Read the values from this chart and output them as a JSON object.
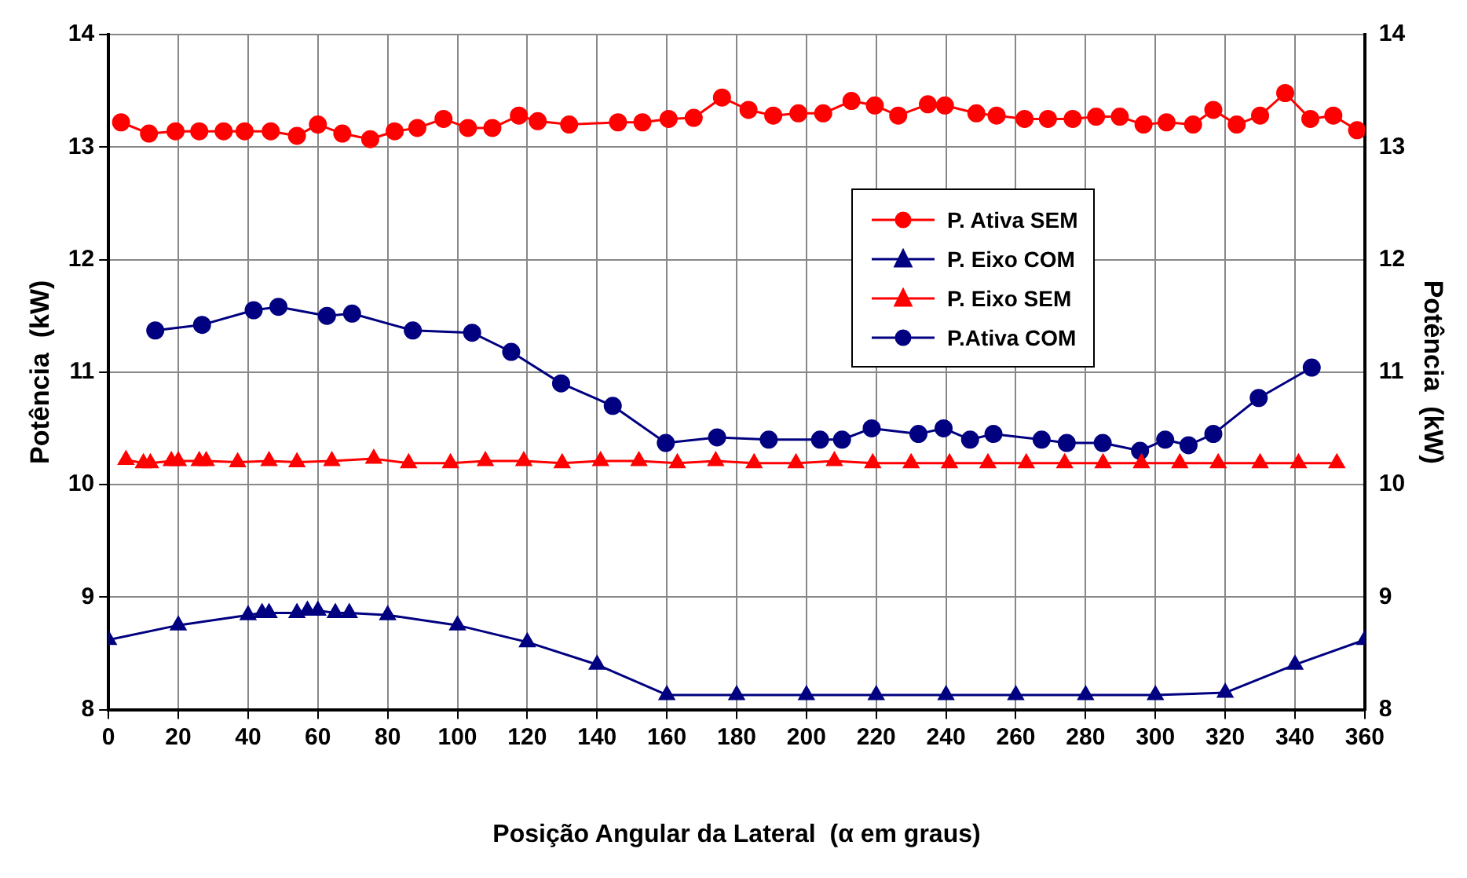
{
  "chart_data": {
    "type": "line",
    "xlabel": "Posição Angular da Lateral  (α em graus)",
    "ylabel": "Potência  (kW)",
    "y2label": "Potência  (kW)",
    "xlim": [
      0,
      360
    ],
    "xticks": [
      0,
      20,
      40,
      60,
      80,
      100,
      120,
      140,
      160,
      180,
      200,
      220,
      240,
      260,
      280,
      300,
      320,
      340,
      360
    ],
    "ylim": [
      8,
      14
    ],
    "yticks": [
      8,
      9,
      10,
      11,
      12,
      13,
      14
    ],
    "y2lim": [
      8,
      14
    ],
    "y2ticks": [
      8,
      9,
      10,
      11,
      12,
      13,
      14
    ],
    "grid": true,
    "legend": "top right",
    "line_style": "solid",
    "series": [
      {
        "name": "P. Ativa SEM",
        "color": "#ff0000",
        "marker": "circle",
        "x": [
          3.6,
          11.6,
          19.2,
          26,
          33,
          39,
          46.5,
          54,
          60,
          67,
          75,
          82,
          88.5,
          96,
          103,
          110,
          117.6,
          123,
          132,
          146,
          153,
          160.5,
          167.7,
          175.8,
          183.4,
          190.5,
          197.7,
          204.8,
          212.9,
          219.6,
          226.3,
          234.8,
          239.7,
          248.7,
          254.5,
          262.5,
          269.2,
          276.3,
          283,
          289.8,
          296.6,
          303.2,
          310.8,
          316.6,
          323.3,
          330,
          337.2,
          344.4,
          351,
          357.8
        ],
        "values": [
          13.22,
          13.12,
          13.14,
          13.14,
          13.14,
          13.14,
          13.14,
          13.1,
          13.2,
          13.12,
          13.07,
          13.14,
          13.17,
          13.25,
          13.17,
          13.17,
          13.28,
          13.23,
          13.2,
          13.22,
          13.22,
          13.25,
          13.26,
          13.44,
          13.33,
          13.28,
          13.3,
          13.3,
          13.41,
          13.37,
          13.28,
          13.38,
          13.37,
          13.3,
          13.28,
          13.25,
          13.25,
          13.25,
          13.27,
          13.27,
          13.2,
          13.22,
          13.2,
          13.33,
          13.2,
          13.28,
          13.48,
          13.25,
          13.28,
          13.15
        ]
      },
      {
        "name": "P. Eixo COM",
        "color": "#000080",
        "marker": "triangle",
        "x": [
          0,
          20,
          40,
          44,
          46,
          54,
          57,
          60,
          65,
          69,
          80,
          100,
          120,
          140,
          160,
          180,
          200,
          220,
          240,
          260,
          280,
          300,
          320,
          340,
          360
        ],
        "values": [
          8.62,
          8.75,
          8.84,
          8.86,
          8.86,
          8.86,
          8.88,
          8.88,
          8.86,
          8.86,
          8.84,
          8.75,
          8.6,
          8.4,
          8.13,
          8.13,
          8.13,
          8.13,
          8.13,
          8.13,
          8.13,
          8.13,
          8.15,
          8.4,
          8.62
        ]
      },
      {
        "name": "P. Eixo SEM",
        "color": "#ff0000",
        "marker": "triangle",
        "x": [
          5,
          10,
          12,
          18,
          20,
          26,
          28,
          37,
          46,
          54,
          64,
          76,
          86,
          98,
          108,
          119,
          130,
          141,
          152,
          163,
          174,
          185,
          197,
          208,
          219,
          230,
          241,
          252,
          263,
          274,
          285,
          296,
          307,
          318,
          330,
          341,
          352
        ],
        "values": [
          10.22,
          10.19,
          10.19,
          10.21,
          10.21,
          10.21,
          10.21,
          10.2,
          10.21,
          10.2,
          10.21,
          10.23,
          10.19,
          10.19,
          10.21,
          10.21,
          10.19,
          10.21,
          10.21,
          10.19,
          10.21,
          10.19,
          10.19,
          10.21,
          10.19,
          10.19,
          10.19,
          10.19,
          10.19,
          10.19,
          10.19,
          10.19,
          10.19,
          10.19,
          10.19,
          10.19,
          10.19
        ]
      },
      {
        "name": "P.Ativa COM",
        "color": "#000080",
        "marker": "circle",
        "x": [
          13.4,
          26.8,
          41.6,
          48.7,
          62.6,
          69.8,
          87.2,
          104.2,
          115.4,
          129.7,
          144.5,
          159.7,
          174.4,
          189.2,
          203.9,
          210.2,
          218.7,
          232.1,
          239.3,
          246.9,
          253.6,
          267.4,
          274.6,
          284.9,
          295.6,
          302.8,
          309.5,
          316.6,
          329.6,
          344.8
        ],
        "values": [
          11.37,
          11.42,
          11.55,
          11.58,
          11.5,
          11.52,
          11.37,
          11.35,
          11.18,
          10.9,
          10.7,
          10.37,
          10.42,
          10.4,
          10.4,
          10.4,
          10.5,
          10.45,
          10.5,
          10.4,
          10.45,
          10.4,
          10.37,
          10.37,
          10.3,
          10.4,
          10.35,
          10.45,
          10.77,
          11.04
        ]
      }
    ]
  }
}
